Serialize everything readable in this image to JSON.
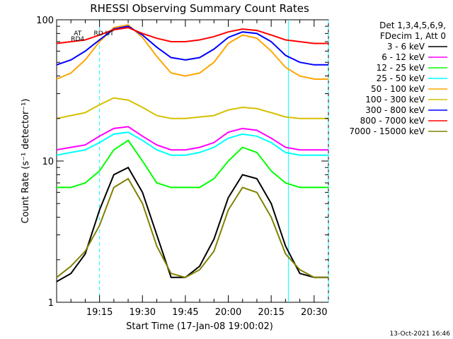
{
  "chart_data": {
    "type": "line",
    "title": "RHESSI Observing Summary Count Rates",
    "xlabel": "Start Time (17-Jan-08 19:00:02)",
    "ylabel": "Count Rate (s⁻¹ detector⁻¹)",
    "x_range_minutes": [
      0,
      95
    ],
    "y_scale": "log",
    "ylim": [
      1,
      100
    ],
    "x_ticks": [
      {
        "value": 15,
        "label": "19:15"
      },
      {
        "value": 30,
        "label": "19:30"
      },
      {
        "value": 45,
        "label": "19:45"
      },
      {
        "value": 60,
        "label": "20:00"
      },
      {
        "value": 75,
        "label": "20:15"
      },
      {
        "value": 90,
        "label": "20:30"
      }
    ],
    "y_ticks": [
      {
        "value": 1,
        "label": "1"
      },
      {
        "value": 10,
        "label": "10"
      },
      {
        "value": 100,
        "label": "100"
      }
    ],
    "legend_header": [
      "Det 1,3,4,5,6,9,",
      "FDecim 1, Att 0"
    ],
    "legend_position": "right",
    "footer": "13-Oct-2021 16:46",
    "attenuator_labels": [
      {
        "text": "AT",
        "x": 6
      },
      {
        "text": "RD",
        "x": 13
      },
      {
        "text": "RD4",
        "x": 5
      },
      {
        "text": "UT",
        "x": 17
      }
    ],
    "markers": [
      {
        "x": 15,
        "color": "#00ffff",
        "style": "dashed"
      },
      {
        "x": 81,
        "color": "#00ffff",
        "style": "solid"
      },
      {
        "x": 95,
        "color": "#00ffff",
        "style": "dashed"
      }
    ],
    "series": [
      {
        "name": "3 - 6 keV",
        "color": "#000000",
        "x": [
          0,
          5,
          10,
          15,
          20,
          25,
          30,
          35,
          40,
          45,
          50,
          55,
          60,
          65,
          70,
          75,
          80,
          85,
          90,
          95
        ],
        "y": [
          1.4,
          1.6,
          2.2,
          4.5,
          8.0,
          9.0,
          6.0,
          3.0,
          1.5,
          1.5,
          1.8,
          2.8,
          5.5,
          8.0,
          7.5,
          5.0,
          2.5,
          1.6,
          1.5,
          1.5
        ]
      },
      {
        "name": "6 - 12 keV",
        "color": "#ff00ff",
        "x": [
          0,
          5,
          10,
          15,
          20,
          25,
          30,
          35,
          40,
          45,
          50,
          55,
          60,
          65,
          70,
          75,
          80,
          85,
          90,
          95
        ],
        "y": [
          12,
          12.5,
          13,
          15,
          17,
          17.5,
          15,
          13,
          12,
          12,
          12.5,
          13.5,
          16,
          17,
          16.5,
          14.5,
          12.5,
          12,
          12,
          12
        ]
      },
      {
        "name": "12 - 25 keV",
        "color": "#00ff00",
        "x": [
          0,
          5,
          10,
          15,
          20,
          25,
          30,
          35,
          40,
          45,
          50,
          55,
          60,
          65,
          70,
          75,
          80,
          85,
          90,
          95
        ],
        "y": [
          6.5,
          6.5,
          7,
          8.5,
          12,
          14,
          10,
          7,
          6.5,
          6.5,
          6.5,
          7.5,
          10,
          12.5,
          11.5,
          8.5,
          7,
          6.5,
          6.5,
          6.5
        ]
      },
      {
        "name": "25 - 50 keV",
        "color": "#00ffff",
        "x": [
          0,
          5,
          10,
          15,
          20,
          25,
          30,
          35,
          40,
          45,
          50,
          55,
          60,
          65,
          70,
          75,
          80,
          85,
          90,
          95
        ],
        "y": [
          11,
          11.5,
          12,
          13.5,
          15.5,
          16,
          14,
          12,
          11,
          11,
          11.5,
          12.5,
          14.5,
          15.5,
          15,
          13.5,
          11.5,
          11,
          11,
          11
        ]
      },
      {
        "name": "50 - 100 keV",
        "color": "#ffa500",
        "x": [
          0,
          5,
          10,
          15,
          20,
          25,
          30,
          35,
          40,
          45,
          50,
          55,
          60,
          65,
          70,
          75,
          80,
          85,
          90,
          95
        ],
        "y": [
          38,
          42,
          52,
          70,
          88,
          92,
          75,
          55,
          42,
          40,
          42,
          50,
          68,
          78,
          74,
          60,
          46,
          40,
          38,
          38
        ]
      },
      {
        "name": "100 - 300 keV",
        "color": "#d4c000",
        "x": [
          0,
          5,
          10,
          15,
          20,
          25,
          30,
          35,
          40,
          45,
          50,
          55,
          60,
          65,
          70,
          75,
          80,
          85,
          90,
          95
        ],
        "y": [
          20,
          21,
          22,
          25,
          28,
          27,
          24,
          21,
          20,
          20,
          20.5,
          21,
          23,
          24,
          23.5,
          22,
          20.5,
          20,
          20,
          20
        ]
      },
      {
        "name": "300 - 800 keV",
        "color": "#0000ff",
        "x": [
          0,
          5,
          10,
          15,
          20,
          25,
          30,
          35,
          40,
          45,
          50,
          55,
          60,
          65,
          70,
          75,
          80,
          85,
          90,
          95
        ],
        "y": [
          48,
          52,
          60,
          72,
          86,
          90,
          78,
          64,
          54,
          52,
          54,
          62,
          75,
          82,
          80,
          70,
          56,
          50,
          48,
          48
        ]
      },
      {
        "name": "800 - 7000 keV",
        "color": "#ff0000",
        "x": [
          0,
          5,
          10,
          15,
          20,
          25,
          30,
          35,
          40,
          45,
          50,
          55,
          60,
          65,
          70,
          75,
          80,
          85,
          90,
          95
        ],
        "y": [
          68,
          70,
          72,
          78,
          85,
          88,
          80,
          74,
          70,
          70,
          72,
          76,
          82,
          86,
          84,
          78,
          72,
          70,
          68,
          68
        ]
      },
      {
        "name": "7000 - 15000 keV",
        "color": "#808000",
        "x": [
          0,
          5,
          10,
          15,
          20,
          25,
          30,
          35,
          40,
          45,
          50,
          55,
          60,
          65,
          70,
          75,
          80,
          85,
          90,
          95
        ],
        "y": [
          1.5,
          1.8,
          2.3,
          3.5,
          6.5,
          7.5,
          5.0,
          2.5,
          1.6,
          1.5,
          1.7,
          2.3,
          4.5,
          6.5,
          6.0,
          4.0,
          2.2,
          1.7,
          1.5,
          1.5
        ]
      }
    ]
  }
}
